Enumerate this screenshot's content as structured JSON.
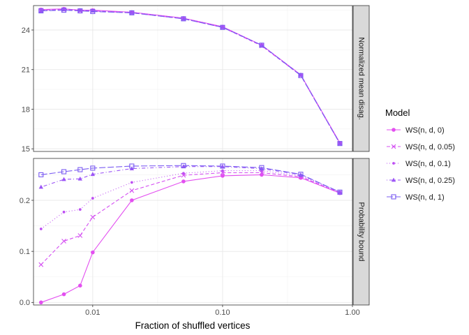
{
  "chart_data": {
    "type": "line",
    "xlabel": "Fraction of shuffled vertices",
    "x_scale": "log10",
    "xlim": [
      0.0035,
      1.0
    ],
    "x_ticks": [
      {
        "value": 0.01,
        "label": "0.01"
      },
      {
        "value": 0.1,
        "label": "0.10"
      },
      {
        "value": 1.0,
        "label": "1.00"
      }
    ],
    "x": [
      0.004,
      0.006,
      0.008,
      0.01,
      0.02,
      0.05,
      0.1,
      0.2,
      0.4,
      0.8
    ],
    "grid": true,
    "legend": {
      "title": "Model",
      "placement": "right",
      "entries": [
        "WS(n, d, 0)",
        "WS(n, d, 0.05)",
        "WS(n, d, 0.1)",
        "WS(n, d, 0.25)",
        "WS(n, d, 1)"
      ]
    },
    "panels": [
      {
        "strip_label": "Normalized mean disag.",
        "ylim": [
          14.8,
          25.85
        ],
        "y_ticks": [
          {
            "value": 15,
            "label": "15"
          },
          {
            "value": 18,
            "label": "18"
          },
          {
            "value": 21,
            "label": "21"
          },
          {
            "value": 24,
            "label": "24"
          }
        ],
        "series": [
          {
            "name": "WS(n, d, 0)",
            "values": [
              25.55,
              25.6,
              25.5,
              25.5,
              25.35,
              24.9,
              24.25,
              22.85,
              20.6,
              15.45
            ]
          },
          {
            "name": "WS(n, d, 0.05)",
            "values": [
              25.5,
              25.55,
              25.45,
              25.45,
              25.3,
              24.85,
              24.2,
              22.8,
              20.55,
              15.4
            ]
          },
          {
            "name": "WS(n, d, 0.1)",
            "values": [
              25.5,
              25.6,
              25.5,
              25.45,
              25.35,
              24.9,
              24.25,
              22.85,
              20.6,
              15.45
            ]
          },
          {
            "name": "WS(n, d, 0.25)",
            "values": [
              25.45,
              25.55,
              25.5,
              25.45,
              25.3,
              24.85,
              24.2,
              22.85,
              20.6,
              15.4
            ]
          },
          {
            "name": "WS(n, d, 1)",
            "values": [
              25.45,
              25.5,
              25.45,
              25.4,
              25.3,
              24.85,
              24.2,
              22.85,
              20.55,
              15.4
            ]
          }
        ]
      },
      {
        "strip_label": "Probability bound",
        "ylim": [
          -0.005,
          0.282
        ],
        "y_ticks": [
          {
            "value": 0.0,
            "label": "0.0"
          },
          {
            "value": 0.1,
            "label": "0.1"
          },
          {
            "value": 0.2,
            "label": "0.2"
          }
        ],
        "series": [
          {
            "name": "WS(n, d, 0)",
            "values": [
              0.0,
              0.016,
              0.033,
              0.098,
              0.2,
              0.237,
              0.248,
              0.25,
              0.244,
              0.214
            ]
          },
          {
            "name": "WS(n, d, 0.05)",
            "values": [
              0.074,
              0.12,
              0.131,
              0.167,
              0.219,
              0.249,
              0.254,
              0.254,
              0.246,
              0.215
            ]
          },
          {
            "name": "WS(n, d, 0.1)",
            "values": [
              0.144,
              0.177,
              0.182,
              0.204,
              0.235,
              0.253,
              0.258,
              0.258,
              0.248,
              0.216
            ]
          },
          {
            "name": "WS(n, d, 0.25)",
            "values": [
              0.226,
              0.241,
              0.242,
              0.251,
              0.262,
              0.266,
              0.266,
              0.262,
              0.25,
              0.216
            ]
          },
          {
            "name": "WS(n, d, 1)",
            "values": [
              0.25,
              0.256,
              0.26,
              0.263,
              0.267,
              0.268,
              0.267,
              0.264,
              0.251,
              0.216
            ]
          }
        ]
      }
    ],
    "colors": [
      "#e34ff0",
      "#d44ff2",
      "#be4ff3",
      "#9c55f6",
      "#7b5cf2"
    ],
    "line_styles": [
      "solid",
      "dashed",
      "dotted",
      "dotdash",
      "longdash"
    ],
    "markers": [
      "circle",
      "cross",
      "small-dot",
      "triangle",
      "square-open"
    ]
  }
}
